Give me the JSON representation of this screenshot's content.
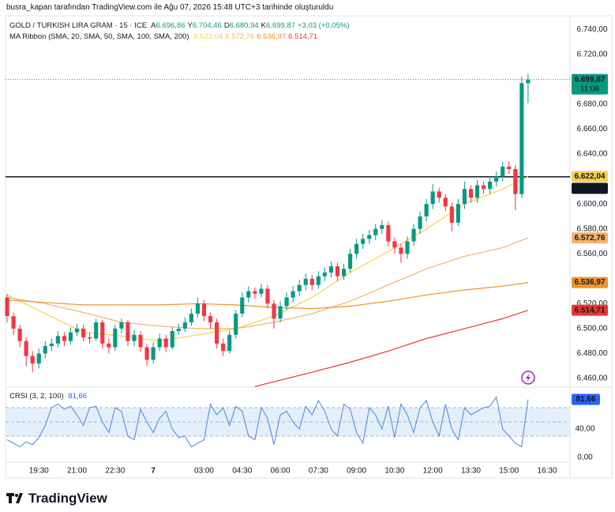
{
  "header": "busra_kapan tarafından TradingView.com ile Ağu 07, 2026 15:48 UTC+3 tarihinde oluşturuldu",
  "footer": "TradingView",
  "chart_data": {
    "type": "candlestick",
    "title": "GOLD / TURKISH LIRA GRAM · 15 · ICE",
    "ohlc_legend": [
      {
        "key": "A",
        "value": "6.696,86"
      },
      {
        "key": "Y",
        "value": "6.704,46"
      },
      {
        "key": "D",
        "value": "6.680,94"
      },
      {
        "key": "K",
        "value": "6.699,87"
      }
    ],
    "change": "+3,03 (+0,05%)",
    "up_color": "#089981",
    "down_color": "#f23645",
    "open": [
      6525,
      6510,
      6500,
      6490,
      6478,
      6472,
      6480,
      6486,
      6488,
      6494,
      6490,
      6497,
      6500,
      6493,
      6492,
      6505,
      6488,
      6485,
      6500,
      6505,
      6490,
      6495,
      6485,
      6475,
      6485,
      6492,
      6485,
      6498,
      6500,
      6505,
      6512,
      6520,
      6510,
      6505,
      6488,
      6482,
      6495,
      6512,
      6525,
      6530,
      6528,
      6532,
      6520,
      6508,
      6518,
      6525,
      6530,
      6535,
      6540,
      6535,
      6542,
      6545,
      6550,
      6542,
      6548,
      6560,
      6568,
      6572,
      6575,
      6580,
      6583,
      6570,
      6565,
      6560,
      6570,
      6580,
      6590,
      6600,
      6610,
      6605,
      6598,
      6585,
      6600,
      6612,
      6605,
      6615,
      6612,
      6618,
      6622,
      6630,
      6628,
      6608,
      6696.86
    ],
    "high": [
      6528,
      6513,
      6503,
      6493,
      6482,
      6484,
      6490,
      6492,
      6498,
      6497,
      6501,
      6504,
      6503,
      6497,
      6508,
      6507,
      6492,
      6503,
      6508,
      6507,
      6499,
      6498,
      6488,
      6489,
      6496,
      6495,
      6501,
      6504,
      6509,
      6516,
      6525,
      6523,
      6513,
      6508,
      6492,
      6498,
      6515,
      6529,
      6534,
      6533,
      6536,
      6535,
      6523,
      6522,
      6529,
      6534,
      6539,
      6544,
      6543,
      6546,
      6549,
      6554,
      6553,
      6552,
      6564,
      6572,
      6576,
      6579,
      6584,
      6587,
      6586,
      6573,
      6568,
      6574,
      6584,
      6594,
      6604,
      6616,
      6613,
      6608,
      6601,
      6604,
      6618,
      6615,
      6619,
      6618,
      6622,
      6626,
      6634,
      6634,
      6631,
      6702,
      6704.46
    ],
    "low": [
      6505,
      6495,
      6485,
      6470,
      6465,
      6468,
      6476,
      6482,
      6485,
      6486,
      6487,
      6494,
      6490,
      6488,
      6490,
      6484,
      6480,
      6482,
      6496,
      6486,
      6486,
      6481,
      6470,
      6472,
      6482,
      6481,
      6483,
      6495,
      6497,
      6502,
      6509,
      6506,
      6500,
      6484,
      6478,
      6480,
      6492,
      6509,
      6521,
      6524,
      6525,
      6516,
      6500,
      6505,
      6515,
      6521,
      6526,
      6531,
      6531,
      6532,
      6538,
      6541,
      6538,
      6539,
      6545,
      6556,
      6564,
      6568,
      6571,
      6576,
      6566,
      6560,
      6553,
      6556,
      6566,
      6576,
      6586,
      6596,
      6601,
      6594,
      6578,
      6582,
      6596,
      6601,
      6601,
      6608,
      6608,
      6614,
      6618,
      6624,
      6595,
      6605,
      6680.94
    ],
    "close": [
      6510,
      6500,
      6490,
      6478,
      6472,
      6480,
      6486,
      6488,
      6494,
      6490,
      6497,
      6500,
      6493,
      6492,
      6505,
      6488,
      6485,
      6500,
      6505,
      6490,
      6495,
      6485,
      6475,
      6485,
      6492,
      6485,
      6498,
      6500,
      6505,
      6512,
      6520,
      6510,
      6505,
      6488,
      6482,
      6495,
      6512,
      6525,
      6530,
      6528,
      6532,
      6520,
      6508,
      6518,
      6525,
      6530,
      6535,
      6540,
      6535,
      6542,
      6545,
      6550,
      6542,
      6548,
      6560,
      6568,
      6572,
      6575,
      6580,
      6583,
      6570,
      6565,
      6560,
      6570,
      6580,
      6590,
      6600,
      6610,
      6605,
      6598,
      6585,
      6600,
      6612,
      6605,
      6615,
      6612,
      6618,
      6622,
      6630,
      6628,
      6608,
      6697,
      6699.87
    ],
    "xlim": [
      -0.25,
      88.6
    ],
    "xticks": [
      {
        "value": 5,
        "label": "19:30"
      },
      {
        "value": 11,
        "label": "21:00"
      },
      {
        "value": 17,
        "label": "22:30"
      },
      {
        "value": 23,
        "label": "7",
        "bold": true
      },
      {
        "value": 31,
        "label": "03:00"
      },
      {
        "value": 37,
        "label": "04:30"
      },
      {
        "value": 43,
        "label": "06:00"
      },
      {
        "value": 49,
        "label": "07:30"
      },
      {
        "value": 55,
        "label": "09:00"
      },
      {
        "value": 61,
        "label": "10:30"
      },
      {
        "value": 67,
        "label": "12:00"
      },
      {
        "value": 73,
        "label": "13:30"
      },
      {
        "value": 79,
        "label": "15:00"
      },
      {
        "value": 85,
        "label": "16:30"
      }
    ],
    "ylim": [
      6453,
      6751
    ],
    "yticks": [
      {
        "value": 6740,
        "label": "6.740,00"
      },
      {
        "value": 6720,
        "label": "6.720,00"
      },
      {
        "value": 6680,
        "label": "6.680,00"
      },
      {
        "value": 6660,
        "label": "6.660,00"
      },
      {
        "value": 6640,
        "label": "6.640,00"
      },
      {
        "value": 6600,
        "label": "6.600,00"
      },
      {
        "value": 6580,
        "label": "6.580,00"
      },
      {
        "value": 6560,
        "label": "6.560,00"
      },
      {
        "value": 6520,
        "label": "6.520,00"
      },
      {
        "value": 6500,
        "label": "6.500,00"
      },
      {
        "value": 6480,
        "label": "6.480,00"
      },
      {
        "value": 6460,
        "label": "6.460,00"
      }
    ],
    "last_price": {
      "value": 6699.87,
      "label": "6.699,87",
      "countdown": "11:08",
      "color": "#089981"
    },
    "hline": {
      "value": 6621.81,
      "label": "6.621,81",
      "color": "#131722"
    },
    "ma": {
      "title": "MA Ribbon (SMA, 20, SMA, 50, SMA, 100, SMA, 200)",
      "series": [
        {
          "color": "#f5d14a",
          "text_color": "#131722",
          "x": [
            0,
            6,
            12,
            18,
            24,
            30,
            36,
            42,
            48,
            54,
            60,
            66,
            72,
            78,
            82
          ],
          "values": [
            6527,
            6512,
            6497,
            6494,
            6490,
            6495,
            6500,
            6510,
            6525,
            6545,
            6562,
            6580,
            6600,
            6612,
            6622.04
          ],
          "value_label": "6.622,04"
        },
        {
          "color": "#f6b26b",
          "text_color": "#131722",
          "x": [
            0,
            6,
            12,
            18,
            24,
            30,
            36,
            42,
            48,
            54,
            60,
            66,
            72,
            78,
            82
          ],
          "values": [
            6525,
            6520,
            6513,
            6505,
            6502,
            6500,
            6500,
            6505,
            6512,
            6522,
            6535,
            6548,
            6558,
            6565,
            6572.76
          ],
          "value_label": "6.572,76"
        },
        {
          "color": "#f0932b",
          "text_color": "#ffffff",
          "x": [
            0,
            6,
            12,
            18,
            24,
            30,
            36,
            42,
            48,
            54,
            60,
            66,
            72,
            78,
            82
          ],
          "values": [
            6523,
            6521,
            6519,
            6519,
            6519,
            6520,
            6519,
            6517,
            6516,
            6518,
            6522,
            6527,
            6531,
            6534,
            6536.97
          ],
          "value_label": "6.536,97"
        },
        {
          "color": "#e53935",
          "text_color": "#ffffff",
          "x": [
            39,
            48,
            54,
            60,
            66,
            72,
            78,
            82
          ],
          "values": [
            6453.5,
            6465,
            6473,
            6482,
            6492,
            6500,
            6508,
            6514.71
          ],
          "value_label": "6.514,71"
        }
      ]
    },
    "indicator": {
      "title": "CRSI (3, 2, 100)",
      "color": "#5b8ed6",
      "badge_color": "#2962ff",
      "values": [
        25,
        20,
        15,
        22,
        18,
        28,
        45,
        70,
        75,
        68,
        72,
        60,
        45,
        70,
        72,
        50,
        35,
        70,
        65,
        30,
        25,
        68,
        50,
        35,
        55,
        65,
        40,
        28,
        30,
        15,
        20,
        25,
        75,
        60,
        70,
        45,
        72,
        65,
        30,
        25,
        70,
        55,
        18,
        60,
        65,
        50,
        40,
        72,
        60,
        80,
        65,
        40,
        30,
        75,
        68,
        35,
        20,
        70,
        60,
        40,
        72,
        28,
        75,
        60,
        35,
        70,
        80,
        50,
        30,
        75,
        40,
        25,
        70,
        60,
        65,
        70,
        72,
        85,
        40,
        30,
        20,
        15,
        81.66
      ],
      "value_label": "81,66",
      "ylim": [
        -6.7,
        98.9
      ],
      "bands": [
        70,
        50,
        30
      ],
      "yticks": [
        {
          "value": 40,
          "label": "40,00"
        },
        {
          "value": 0,
          "label": "0,00"
        }
      ]
    }
  }
}
